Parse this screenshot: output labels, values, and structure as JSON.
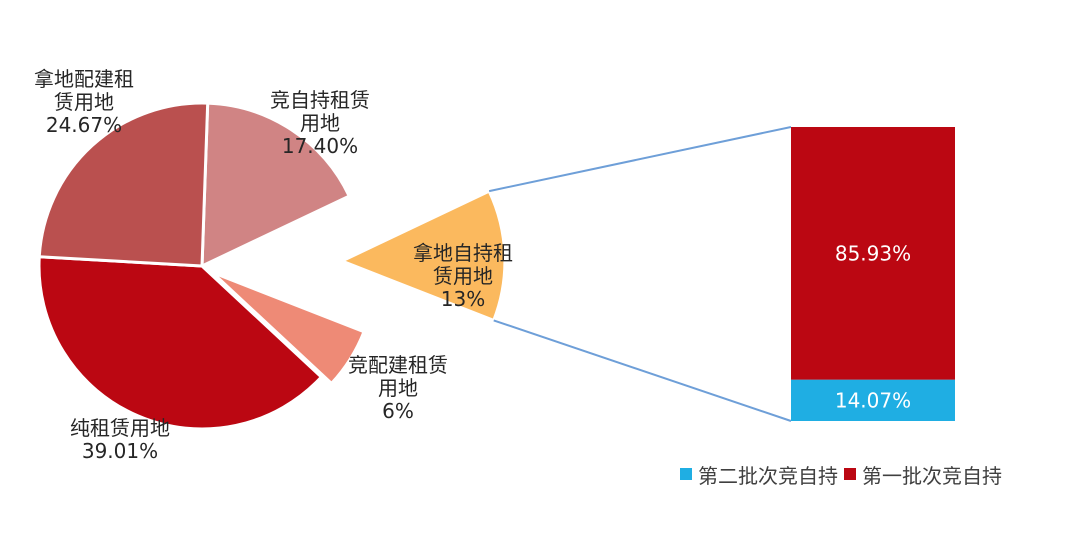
{
  "chart_data": {
    "type": "pie-of-bar",
    "title": "",
    "pie": {
      "slices": [
        {
          "label_lines": [
            "竞自持租赁",
            "用地"
          ],
          "label": "竞自持租赁用地",
          "value": 17.4,
          "value_text": "17.40%",
          "color": "#d08484"
        },
        {
          "label_lines": [
            "拿地自持租",
            "赁用地"
          ],
          "label": "拿地自持租赁用地",
          "value": 13.0,
          "value_text": "13%",
          "color": "#fbb95e"
        },
        {
          "label_lines": [
            "竞配建租赁",
            "用地"
          ],
          "label": "竞配建租赁用地",
          "value": 6.0,
          "value_text": "6%",
          "color": "#ee8a76"
        },
        {
          "label_lines": [
            "纯租赁用地"
          ],
          "label": "纯租赁用地",
          "value": 39.01,
          "value_text": "39.01%",
          "color": "#bb0712"
        },
        {
          "label_lines": [
            "拿地配建租",
            "赁用地"
          ],
          "label": "拿地配建租赁用地",
          "value": 24.67,
          "value_text": "24.67%",
          "color": "#ba504f"
        }
      ]
    },
    "bar": {
      "segments": [
        {
          "name": "第二批次竞自持",
          "value": 14.07,
          "value_text": "14.07%",
          "color": "#1faee3"
        },
        {
          "name": "第一批次竞自持",
          "value": 85.93,
          "value_text": "85.93%",
          "color": "#bb0712"
        }
      ]
    },
    "connector_color": "#6e9fd8",
    "legend": {
      "position": "bottom-right",
      "items": [
        {
          "name": "第二批次竞自持",
          "color": "#1faee3"
        },
        {
          "name": "第一批次竞自持",
          "color": "#bb0712"
        }
      ]
    }
  }
}
